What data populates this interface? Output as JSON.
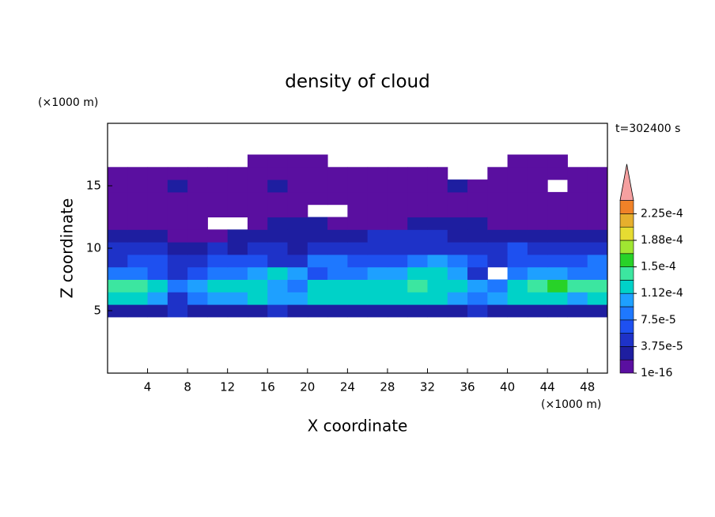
{
  "chart_data": {
    "type": "contour",
    "title": "density of cloud",
    "time_label": "t=302400 s",
    "x_label": "X coordinate",
    "y_label": "Z coordinate",
    "x_unit": "(×1000 m)",
    "y_unit": "(×1000 m)",
    "xlim": [
      0,
      50
    ],
    "ylim": [
      0,
      20
    ],
    "xticks": [
      4,
      8,
      12,
      16,
      20,
      24,
      28,
      32,
      36,
      40,
      44,
      48
    ],
    "yticks": [
      5,
      10,
      15
    ],
    "x": [
      1,
      3,
      5,
      7,
      9,
      11,
      13,
      15,
      17,
      19,
      21,
      23,
      25,
      27,
      29,
      31,
      33,
      35,
      37,
      39,
      41,
      43,
      45,
      47,
      49
    ],
    "z": [
      5,
      6,
      7,
      8,
      9,
      10,
      11,
      12,
      13,
      14,
      15,
      16,
      17
    ],
    "values": [
      [
        3e-05,
        3e-05,
        3e-05,
        5e-05,
        3e-05,
        3e-05,
        3e-05,
        3e-05,
        5e-05,
        3e-05,
        3e-05,
        3e-05,
        3e-05,
        3e-05,
        3e-05,
        3e-05,
        3e-05,
        3e-05,
        5e-05,
        3e-05,
        3e-05,
        3e-05,
        3e-05,
        3e-05,
        3e-05
      ],
      [
        0.00012,
        0.00012,
        0.0001,
        5e-05,
        8.5e-05,
        0.0001,
        0.0001,
        0.00012,
        0.0001,
        0.0001,
        0.00012,
        0.00012,
        0.00012,
        0.00012,
        0.00012,
        0.00012,
        0.00012,
        0.0001,
        8.5e-05,
        0.0001,
        0.00012,
        0.00012,
        0.00012,
        0.0001,
        0.00012
      ],
      [
        0.00014,
        0.00014,
        0.00012,
        8.5e-05,
        0.0001,
        0.00012,
        0.00012,
        0.00012,
        0.0001,
        8.5e-05,
        0.00012,
        0.00012,
        0.00012,
        0.00012,
        0.00012,
        0.00014,
        0.00012,
        0.00012,
        0.0001,
        8.5e-05,
        0.00012,
        0.00014,
        0.00016,
        0.00014,
        0.00014
      ],
      [
        8.5e-05,
        8.5e-05,
        7e-05,
        5e-05,
        7e-05,
        8.5e-05,
        8.5e-05,
        0.0001,
        0.00012,
        0.0001,
        7e-05,
        8.5e-05,
        8.5e-05,
        0.0001,
        0.0001,
        0.00012,
        0.00012,
        0.0001,
        5e-05,
        null,
        8.5e-05,
        0.0001,
        0.0001,
        8.5e-05,
        8.5e-05
      ],
      [
        5e-05,
        7e-05,
        7e-05,
        5e-05,
        5e-05,
        7e-05,
        7e-05,
        7e-05,
        5e-05,
        5e-05,
        8.5e-05,
        8.5e-05,
        7e-05,
        7e-05,
        7e-05,
        8.5e-05,
        0.0001,
        8.5e-05,
        7e-05,
        5e-05,
        7e-05,
        7e-05,
        7e-05,
        7e-05,
        8.5e-05
      ],
      [
        5e-05,
        5e-05,
        5e-05,
        3e-05,
        3e-05,
        5e-05,
        3e-05,
        5e-05,
        5e-05,
        3e-05,
        5e-05,
        5e-05,
        5e-05,
        5e-05,
        5e-05,
        5e-05,
        5e-05,
        5e-05,
        5e-05,
        5e-05,
        7e-05,
        5e-05,
        5e-05,
        5e-05,
        5e-05
      ],
      [
        3e-05,
        3e-05,
        3e-05,
        1e-05,
        1e-05,
        1e-05,
        3e-05,
        3e-05,
        3e-05,
        3e-05,
        3e-05,
        3e-05,
        3e-05,
        5e-05,
        5e-05,
        5e-05,
        5e-05,
        3e-05,
        3e-05,
        3e-05,
        3e-05,
        3e-05,
        3e-05,
        3e-05,
        3e-05
      ],
      [
        1e-05,
        1e-05,
        1e-05,
        1e-05,
        1e-05,
        null,
        null,
        1e-05,
        3e-05,
        3e-05,
        3e-05,
        1e-05,
        1e-05,
        1e-05,
        1e-05,
        3e-05,
        3e-05,
        3e-05,
        3e-05,
        1e-05,
        1e-05,
        1e-05,
        1e-05,
        1e-05,
        1e-05
      ],
      [
        1e-05,
        1e-05,
        1e-05,
        1e-05,
        1e-05,
        1e-05,
        1e-05,
        1e-05,
        1e-05,
        1e-05,
        null,
        null,
        1e-05,
        1e-05,
        1e-05,
        1e-05,
        1e-05,
        1e-05,
        1e-05,
        1e-05,
        1e-05,
        1e-05,
        1e-05,
        1e-05,
        1e-05
      ],
      [
        1e-05,
        1e-05,
        1e-05,
        1e-05,
        1e-05,
        1e-05,
        1e-05,
        1e-05,
        1e-05,
        1e-05,
        1e-05,
        1e-05,
        1e-05,
        1e-05,
        1e-05,
        1e-05,
        1e-05,
        1e-05,
        1e-05,
        1e-05,
        1e-05,
        1e-05,
        1e-05,
        1e-05,
        1e-05
      ],
      [
        1e-05,
        1e-05,
        1e-05,
        3e-05,
        1e-05,
        1e-05,
        1e-05,
        1e-05,
        3e-05,
        1e-05,
        1e-05,
        1e-05,
        1e-05,
        1e-05,
        1e-05,
        1e-05,
        1e-05,
        3e-05,
        1e-05,
        1e-05,
        1e-05,
        1e-05,
        null,
        1e-05,
        1e-05
      ],
      [
        1e-05,
        1e-05,
        1e-05,
        1e-05,
        1e-05,
        1e-05,
        1e-05,
        1e-05,
        1e-05,
        1e-05,
        1e-05,
        1e-05,
        1e-05,
        1e-05,
        1e-05,
        1e-05,
        1e-05,
        null,
        null,
        1e-05,
        1e-05,
        1e-05,
        1e-05,
        1e-05,
        1e-05
      ],
      [
        null,
        null,
        null,
        null,
        null,
        null,
        null,
        1e-05,
        1e-05,
        1e-05,
        1e-05,
        null,
        null,
        null,
        null,
        null,
        null,
        null,
        null,
        null,
        1e-05,
        1e-05,
        1e-05,
        null,
        null
      ]
    ],
    "levels": [
      1e-16,
      1.875e-05,
      3.75e-05,
      5.625e-05,
      7.5e-05,
      9.375e-05,
      0.0001125,
      0.00013125,
      0.00015,
      0.00016875,
      0.0001875,
      0.00020625,
      0.000225,
      0.00024375
    ],
    "colors": [
      "#5a0fa0",
      "#1e1ea0",
      "#1e32c8",
      "#1e50f0",
      "#1e78ff",
      "#1ea0ff",
      "#00d2c8",
      "#3ce6a0",
      "#28d228",
      "#a0e632",
      "#e6dc32",
      "#e6af2d",
      "#f08228",
      "#fa3c3c"
    ],
    "extend_color": "#f5a0a0",
    "colorbar_ticks": [
      {
        "value": 1e-16,
        "label": "1e-16"
      },
      {
        "value": 3.75e-05,
        "label": "3.75e-5"
      },
      {
        "value": 7.5e-05,
        "label": "7.5e-5"
      },
      {
        "value": 0.0001125,
        "label": "1.12e-4"
      },
      {
        "value": 0.00015,
        "label": "1.5e-4"
      },
      {
        "value": 0.0001875,
        "label": "1.88e-4"
      },
      {
        "value": 0.000225,
        "label": "2.25e-4"
      }
    ]
  }
}
